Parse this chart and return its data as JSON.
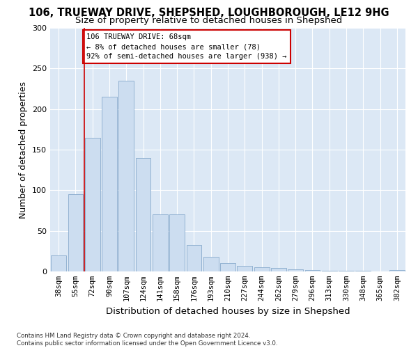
{
  "title": "106, TRUEWAY DRIVE, SHEPSHED, LOUGHBOROUGH, LE12 9HG",
  "subtitle": "Size of property relative to detached houses in Shepshed",
  "xlabel": "Distribution of detached houses by size in Shepshed",
  "ylabel": "Number of detached properties",
  "categories": [
    "38sqm",
    "55sqm",
    "72sqm",
    "90sqm",
    "107sqm",
    "124sqm",
    "141sqm",
    "158sqm",
    "176sqm",
    "193sqm",
    "210sqm",
    "227sqm",
    "244sqm",
    "262sqm",
    "279sqm",
    "296sqm",
    "313sqm",
    "330sqm",
    "348sqm",
    "365sqm",
    "382sqm"
  ],
  "values": [
    20,
    95,
    165,
    215,
    235,
    140,
    70,
    70,
    33,
    18,
    10,
    7,
    5,
    4,
    3,
    2,
    1,
    1,
    1,
    0,
    2
  ],
  "bar_color": "#ccddf0",
  "bar_edge_color": "#88aacc",
  "vline_x": 1.5,
  "vline_color": "#cc0000",
  "annotation_text": "106 TRUEWAY DRIVE: 68sqm\n← 8% of detached houses are smaller (78)\n92% of semi-detached houses are larger (938) →",
  "annotation_box_color": "#ffffff",
  "annotation_box_edge": "#cc0000",
  "ylim": [
    0,
    300
  ],
  "yticks": [
    0,
    50,
    100,
    150,
    200,
    250,
    300
  ],
  "footer": "Contains HM Land Registry data © Crown copyright and database right 2024.\nContains public sector information licensed under the Open Government Licence v3.0.",
  "bg_color": "#dce8f5",
  "title_fontsize": 10.5,
  "subtitle_fontsize": 9.5,
  "axis_label_fontsize": 9,
  "tick_fontsize": 7.5,
  "footer_fontsize": 6.2
}
